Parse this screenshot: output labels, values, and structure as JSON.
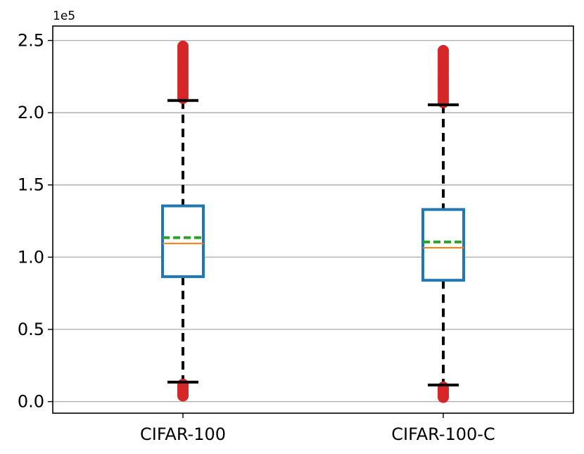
{
  "chart_data": {
    "type": "box",
    "title": "",
    "xlabel": "",
    "ylabel": "",
    "y_offset_label": "1e5",
    "ylim": [
      -0.08,
      2.6
    ],
    "yticks": [
      0.0,
      0.5,
      1.0,
      1.5,
      2.0,
      2.5
    ],
    "ytick_labels": [
      "0.0",
      "0.5",
      "1.0",
      "1.5",
      "2.0",
      "2.5"
    ],
    "grid": "horizontal",
    "categories": [
      "CIFAR-100",
      "CIFAR-100-C"
    ],
    "boxes": [
      {
        "label": "CIFAR-100",
        "whisker_low": 0.135,
        "q1": 0.865,
        "median": 1.095,
        "mean": 1.135,
        "q3": 1.355,
        "whisker_high": 2.085,
        "outliers_low": [
          0.04,
          0.05,
          0.06,
          0.07,
          0.08,
          0.09,
          0.1,
          0.11,
          0.12
        ],
        "outliers_high": [
          2.1,
          2.12,
          2.14,
          2.16,
          2.18,
          2.2,
          2.22,
          2.24,
          2.26,
          2.28,
          2.3,
          2.32,
          2.34,
          2.36,
          2.38,
          2.4,
          2.42,
          2.44,
          2.46
        ]
      },
      {
        "label": "CIFAR-100-C",
        "whisker_low": 0.115,
        "q1": 0.84,
        "median": 1.065,
        "mean": 1.105,
        "q3": 1.33,
        "whisker_high": 2.055,
        "outliers_low": [
          0.03,
          0.04,
          0.05,
          0.06,
          0.07,
          0.08,
          0.09,
          0.1
        ],
        "outliers_high": [
          2.07,
          2.09,
          2.11,
          2.13,
          2.15,
          2.17,
          2.19,
          2.21,
          2.23,
          2.25,
          2.27,
          2.29,
          2.31,
          2.33,
          2.35,
          2.37,
          2.39,
          2.41,
          2.43
        ]
      }
    ],
    "colors": {
      "box": "#1f77b4",
      "median": "#ff7f0e",
      "mean": "#2ca02c",
      "whisker": "#000000",
      "outlier": "#d62728",
      "grid": "#b0b0b0"
    }
  }
}
